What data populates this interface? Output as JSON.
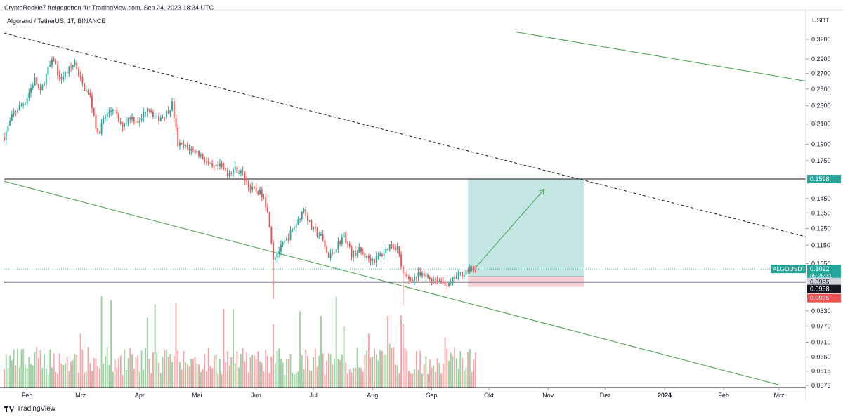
{
  "header": {
    "attribution": "CryptoRookie7 freigegeben für TradingView.com, Sep 24, 2023 18:34 UTC",
    "symbol": "Algorand / TetherUS, 1T, BINANCE",
    "currency": "USDT"
  },
  "footer": {
    "brand": "TradingView"
  },
  "colors": {
    "up": "#26a69a",
    "down": "#ef5350",
    "up_volume": "#9ad3a0",
    "down_volume": "#f4a4a6",
    "channel": "#43a047",
    "target_zone": "#b2dfdb",
    "stop_zone": "#f8c8cc"
  },
  "chart_data": {
    "type": "candlestick",
    "scale": "log",
    "ylim": [
      0.0573,
      0.32
    ],
    "x_range": [
      "2023-01-20",
      "2024-03-15"
    ],
    "y_ticks": [
      "0.3200",
      "0.2900",
      "0.2700",
      "0.2500",
      "0.2300",
      "0.2100",
      "0.1900",
      "0.1750",
      "0.1450",
      "0.1350",
      "0.1250",
      "0.1150",
      "0.1050",
      "0.0830",
      "0.0770",
      "0.0710",
      "0.0660",
      "0.0615",
      "0.0573"
    ],
    "x_ticks": [
      {
        "label": "Feb",
        "date": "2023-02-01"
      },
      {
        "label": "Mrz",
        "date": "2023-03-01"
      },
      {
        "label": "Apr",
        "date": "2023-04-01"
      },
      {
        "label": "Mai",
        "date": "2023-05-01"
      },
      {
        "label": "Jun",
        "date": "2023-06-01"
      },
      {
        "label": "Jul",
        "date": "2023-07-01"
      },
      {
        "label": "Aug",
        "date": "2023-08-01"
      },
      {
        "label": "Sep",
        "date": "2023-09-01"
      },
      {
        "label": "Okt",
        "date": "2023-10-01"
      },
      {
        "label": "Nov",
        "date": "2023-11-01"
      },
      {
        "label": "Dez",
        "date": "2023-12-01"
      },
      {
        "label": "2024",
        "date": "2024-01-01",
        "bold": true
      },
      {
        "label": "Feb",
        "date": "2024-02-01"
      },
      {
        "label": "Mrz",
        "date": "2024-03-01"
      }
    ],
    "series": [
      {
        "path": [
          [
            "2023-01-20",
            0.197
          ],
          [
            "2023-01-25",
            0.222
          ],
          [
            "2023-01-31",
            0.235
          ],
          [
            "2023-02-05",
            0.262
          ],
          [
            "2023-02-08",
            0.245
          ],
          [
            "2023-02-12",
            0.275
          ],
          [
            "2023-02-15",
            0.29
          ],
          [
            "2023-02-18",
            0.262
          ],
          [
            "2023-02-22",
            0.272
          ],
          [
            "2023-02-26",
            0.285
          ],
          [
            "2023-03-02",
            0.255
          ],
          [
            "2023-03-06",
            0.24
          ],
          [
            "2023-03-10",
            0.198
          ],
          [
            "2023-03-13",
            0.215
          ],
          [
            "2023-03-18",
            0.228
          ],
          [
            "2023-03-22",
            0.208
          ],
          [
            "2023-03-27",
            0.218
          ],
          [
            "2023-04-01",
            0.212
          ],
          [
            "2023-04-05",
            0.23
          ],
          [
            "2023-04-10",
            0.215
          ],
          [
            "2023-04-15",
            0.222
          ],
          [
            "2023-04-18",
            0.232
          ],
          [
            "2023-04-21",
            0.19
          ],
          [
            "2023-04-25",
            0.187
          ],
          [
            "2023-05-01",
            0.183
          ],
          [
            "2023-05-05",
            0.176
          ],
          [
            "2023-05-09",
            0.168
          ],
          [
            "2023-05-13",
            0.17
          ],
          [
            "2023-05-17",
            0.165
          ],
          [
            "2023-05-21",
            0.168
          ],
          [
            "2023-05-25",
            0.164
          ],
          [
            "2023-05-29",
            0.152
          ],
          [
            "2023-06-02",
            0.15
          ],
          [
            "2023-06-05",
            0.148
          ],
          [
            "2023-06-08",
            0.128
          ],
          [
            "2023-06-10",
            0.108
          ],
          [
            "2023-06-13",
            0.112
          ],
          [
            "2023-06-17",
            0.118
          ],
          [
            "2023-06-22",
            0.128
          ],
          [
            "2023-06-26",
            0.138
          ],
          [
            "2023-06-30",
            0.125
          ],
          [
            "2023-07-05",
            0.12
          ],
          [
            "2023-07-09",
            0.108
          ],
          [
            "2023-07-13",
            0.114
          ],
          [
            "2023-07-17",
            0.121
          ],
          [
            "2023-07-21",
            0.11
          ],
          [
            "2023-07-25",
            0.112
          ],
          [
            "2023-07-29",
            0.108
          ],
          [
            "2023-08-02",
            0.107
          ],
          [
            "2023-08-06",
            0.11
          ],
          [
            "2023-08-10",
            0.115
          ],
          [
            "2023-08-14",
            0.114
          ],
          [
            "2023-08-17",
            0.099
          ],
          [
            "2023-08-20",
            0.097
          ],
          [
            "2023-08-25",
            0.099
          ],
          [
            "2023-08-30",
            0.098
          ],
          [
            "2023-09-03",
            0.097
          ],
          [
            "2023-09-07",
            0.096
          ],
          [
            "2023-09-10",
            0.094
          ],
          [
            "2023-09-13",
            0.098
          ],
          [
            "2023-09-17",
            0.1
          ],
          [
            "2023-09-21",
            0.102
          ],
          [
            "2023-09-24",
            0.1022
          ]
        ],
        "spikes": [
          {
            "date": "2023-06-10",
            "low": 0.088
          },
          {
            "date": "2023-08-17",
            "low": 0.085
          }
        ]
      }
    ],
    "levels": [
      {
        "name": "resistance",
        "value": 0.1598,
        "label": "0.1598"
      },
      {
        "name": "support",
        "value": 0.0958,
        "label": "0.0958"
      }
    ],
    "price_tags": [
      {
        "name": "last",
        "symbol": "ALGOUSDT",
        "value": "0.1022",
        "countdown": "05:25:31"
      },
      {
        "name": "entry",
        "value": "0.0985"
      },
      {
        "name": "stop",
        "value": "0.0935"
      }
    ],
    "trendlines": [
      {
        "name": "upper-dashed",
        "style": "dashed",
        "from": [
          "2023-01-20",
          0.33
        ],
        "to": [
          "2024-03-15",
          0.12
        ]
      },
      {
        "name": "upper-green",
        "style": "solid",
        "from": [
          "2023-10-15",
          0.332
        ],
        "to": [
          "2024-03-15",
          0.26
        ]
      },
      {
        "name": "lower-green",
        "style": "solid",
        "from": [
          "2023-01-20",
          0.158
        ],
        "to": [
          "2024-03-02",
          0.0573
        ]
      }
    ],
    "position": {
      "type": "long",
      "start": "2023-09-20",
      "end": "2023-11-20",
      "entry": 0.0985,
      "target": 0.1598,
      "stop": 0.0935
    },
    "projection": {
      "from": [
        "2023-09-24",
        0.103
      ],
      "to": [
        "2023-10-30",
        0.152
      ]
    }
  }
}
